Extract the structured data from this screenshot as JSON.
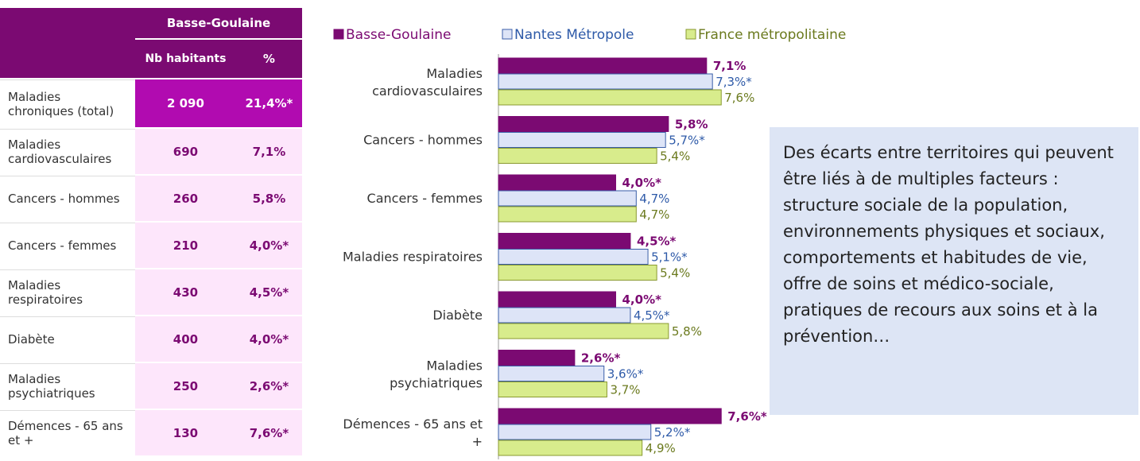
{
  "table": {
    "header": "Basse-Goulaine",
    "columns": [
      "Nb habitants",
      "%"
    ],
    "rows": [
      [
        "Maladies chroniques (total)",
        "2 090",
        "21,4%*"
      ],
      [
        "Maladies cardiovasculaires",
        "690",
        "7,1%"
      ],
      [
        "Cancers - hommes",
        "260",
        "5,8%"
      ],
      [
        "Cancers - femmes",
        "210",
        "4,0%*"
      ],
      [
        "Maladies respiratoires",
        "430",
        "4,5%*"
      ],
      [
        "Diabète",
        "400",
        "4,0%*"
      ],
      [
        "Maladies psychiatriques",
        "250",
        "2,6%*"
      ],
      [
        "Démences - 65 ans et +",
        "130",
        "7,6%*"
      ]
    ]
  },
  "chart_data": {
    "type": "bar",
    "orientation": "horizontal",
    "categories": [
      "Maladies cardiovasculaires",
      "Cancers - hommes",
      "Cancers - femmes",
      "Maladies respiratoires",
      "Diabète",
      "Maladies psychiatriques",
      "Démences - 65 ans et +"
    ],
    "series": [
      {
        "name": "Basse-Goulaine",
        "color": "#7b0a72",
        "values": [
          7.1,
          5.8,
          4.0,
          4.5,
          4.0,
          2.6,
          7.6
        ],
        "value_labels": [
          "7,1%",
          "5,8%",
          "4,0%*",
          "4,5%*",
          "4,0%*",
          "2,6%*",
          "7,6%*"
        ]
      },
      {
        "name": "Nantes Métropole",
        "color": "#dde4f7",
        "values": [
          7.3,
          5.7,
          4.7,
          5.1,
          4.5,
          3.6,
          5.2
        ],
        "value_labels": [
          "7,3%*",
          "5,7%*",
          "4,7%",
          "5,1%*",
          "4,5%*",
          "3,6%*",
          "5,2%*"
        ]
      },
      {
        "name": "France métropolitaine",
        "color": "#d8ec8c",
        "values": [
          7.6,
          5.4,
          4.7,
          5.4,
          5.8,
          3.7,
          4.9
        ],
        "value_labels": [
          "7,6%",
          "5,4%",
          "4,7%",
          "5,4%",
          "5,8%",
          "3,7%",
          "4,9%"
        ]
      }
    ],
    "xlim": [
      0,
      8
    ]
  },
  "note": "Des écarts entre territoires qui peuvent être liés à de multiples facteurs : structure sociale de la population, environnements physiques et sociaux, comportements et habitudes de vie, offre de soins et médico-sociale, pratiques de recours aux soins et à la prévention…"
}
